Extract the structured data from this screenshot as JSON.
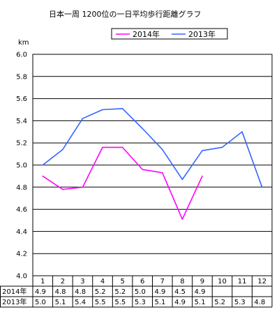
{
  "chart_data": {
    "type": "line",
    "title": "日本一周 1200位の一日平均歩行距離グラフ",
    "ylabel": "km",
    "xlabel": "",
    "ylim": [
      4.0,
      6.0
    ],
    "y_ticks": [
      "4.0",
      "4.2",
      "4.4",
      "4.6",
      "4.8",
      "5.0",
      "5.2",
      "5.4",
      "5.6",
      "5.8",
      "6.0"
    ],
    "grid": true,
    "legend_position": "top",
    "categories": [
      "1",
      "2",
      "3",
      "4",
      "5",
      "6",
      "7",
      "8",
      "9",
      "10",
      "11",
      "12"
    ],
    "series": [
      {
        "name": "2014年",
        "color": "#ff00ff",
        "values": [
          4.9,
          4.78,
          4.8,
          5.16,
          5.16,
          4.96,
          4.93,
          4.51,
          4.9,
          null,
          null,
          null
        ],
        "table_values": [
          "4.9",
          "4.8",
          "4.8",
          "5.2",
          "5.2",
          "5.0",
          "4.9",
          "4.5",
          "4.9",
          "",
          "",
          ""
        ]
      },
      {
        "name": "2013年",
        "color": "#3366ff",
        "values": [
          5.0,
          5.14,
          5.42,
          5.5,
          5.51,
          5.33,
          5.14,
          4.87,
          5.13,
          5.16,
          5.3,
          4.8
        ],
        "table_values": [
          "5.0",
          "5.1",
          "5.4",
          "5.5",
          "5.5",
          "5.3",
          "5.1",
          "4.9",
          "5.1",
          "5.2",
          "5.3",
          "4.8"
        ]
      }
    ]
  }
}
